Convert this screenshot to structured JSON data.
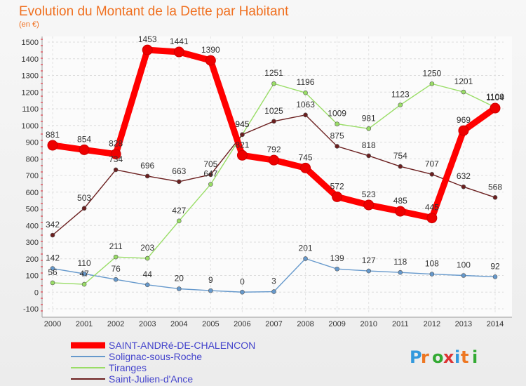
{
  "chart_data": {
    "type": "line",
    "title": "Evolution du Montant de la Dette par Habitant",
    "subtitle": "(en €)",
    "xlabel": "",
    "ylabel": "",
    "ylim": [
      -100,
      1500
    ],
    "yticks": [
      "-100",
      "0",
      "100",
      "200",
      "300",
      "400",
      "500",
      "600",
      "700",
      "800",
      "900",
      "1000",
      "1100",
      "1200",
      "1300",
      "1400",
      "1500"
    ],
    "categories": [
      "2000",
      "2001",
      "2002",
      "2003",
      "2004",
      "2005",
      "2006",
      "2007",
      "2008",
      "2009",
      "2010",
      "2011",
      "2012",
      "2013",
      "2014"
    ],
    "grid": true,
    "legend_position": "bottom-left",
    "series": [
      {
        "name": "SAINT-ANDRé-DE-CHALENCON",
        "color": "#ff0000",
        "values": [
          881,
          854,
          828,
          1453,
          1441,
          1390,
          821,
          792,
          745,
          572,
          523,
          485,
          445,
          969,
          1104
        ]
      },
      {
        "name": "Solignac-sous-Roche",
        "color": "#6699cc",
        "values": [
          142,
          110,
          76,
          44,
          20,
          9,
          0,
          3,
          201,
          139,
          127,
          118,
          108,
          100,
          92
        ]
      },
      {
        "name": "Tiranges",
        "color": "#99dd66",
        "values": [
          56,
          47,
          211,
          203,
          427,
          647,
          945,
          1251,
          1196,
          1009,
          981,
          1123,
          1250,
          1201,
          1109
        ]
      },
      {
        "name": "Saint-Julien-d'Ance",
        "color": "#6b1f1f",
        "values": [
          342,
          503,
          734,
          696,
          663,
          705,
          945,
          1025,
          1063,
          875,
          818,
          754,
          707,
          632,
          568
        ]
      }
    ]
  },
  "brand": {
    "text": "Proxiti"
  }
}
